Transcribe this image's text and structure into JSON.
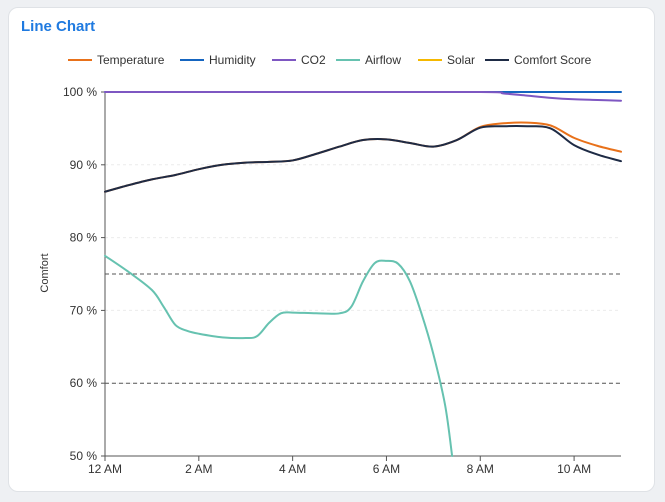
{
  "card": {
    "title": "Line Chart"
  },
  "chart_data": {
    "type": "line",
    "ylabel": "Comfort",
    "ylim": [
      50,
      100
    ],
    "xlim": [
      0,
      11
    ],
    "x_ticks": [
      {
        "x": 0,
        "label": "12 AM"
      },
      {
        "x": 2,
        "label": "2 AM"
      },
      {
        "x": 4,
        "label": "4 AM"
      },
      {
        "x": 6,
        "label": "6 AM"
      },
      {
        "x": 8,
        "label": "8 AM"
      },
      {
        "x": 10,
        "label": "10 AM"
      }
    ],
    "y_ticks": [
      {
        "y": 50,
        "label": "50 %"
      },
      {
        "y": 60,
        "label": "60 %"
      },
      {
        "y": 70,
        "label": "70 %"
      },
      {
        "y": 80,
        "label": "80 %"
      },
      {
        "y": 90,
        "label": "90 %"
      },
      {
        "y": 100,
        "label": "100 %"
      }
    ],
    "reference_lines": [
      75,
      60
    ],
    "legend_position": "top",
    "series": [
      {
        "name": "Temperature",
        "color": "#e8711a",
        "smooth": true,
        "x": [
          0,
          0.5,
          1,
          1.5,
          2,
          2.5,
          3,
          3.5,
          4,
          4.5,
          5,
          5.5,
          6,
          6.5,
          7,
          7.5,
          8,
          8.5,
          9,
          9.5,
          10,
          10.5,
          11
        ],
        "y": [
          86.3,
          87.2,
          88.0,
          88.6,
          89.4,
          90.0,
          90.3,
          90.4,
          90.6,
          91.5,
          92.5,
          93.4,
          93.5,
          93.0,
          92.5,
          93.4,
          95.2,
          95.7,
          95.8,
          95.4,
          93.7,
          92.6,
          91.8
        ]
      },
      {
        "name": "Humidity",
        "color": "#1565c0",
        "smooth": false,
        "x": [
          0,
          11
        ],
        "y": [
          100,
          100
        ]
      },
      {
        "name": "CO2",
        "color": "#7e57c2",
        "smooth": true,
        "x": [
          0,
          4,
          8,
          8.5,
          9,
          9.5,
          10,
          10.5,
          11
        ],
        "y": [
          100,
          100,
          100,
          99.8,
          99.5,
          99.2,
          99.0,
          98.9,
          98.8
        ]
      },
      {
        "name": "Airflow",
        "color": "#66c2b0",
        "smooth": true,
        "x": [
          0,
          0.5,
          1,
          1.25,
          1.5,
          1.75,
          2,
          2.5,
          3,
          3.25,
          3.5,
          3.75,
          4,
          4.5,
          5,
          5.25,
          5.5,
          5.75,
          6,
          6.25,
          6.5,
          6.75,
          7,
          7.25,
          7.4
        ],
        "y": [
          77.5,
          75.3,
          72.8,
          70.5,
          68.0,
          67.2,
          66.8,
          66.3,
          66.2,
          66.5,
          68.3,
          69.6,
          69.7,
          69.6,
          69.6,
          70.5,
          74.0,
          76.5,
          76.8,
          76.4,
          74.0,
          69.5,
          64.0,
          57.0,
          50.0
        ]
      },
      {
        "name": "Solar",
        "color": "#f5b800",
        "smooth": false,
        "x": [],
        "y": []
      },
      {
        "name": "Comfort Score",
        "color": "#1e2b45",
        "smooth": true,
        "x": [
          0,
          0.5,
          1,
          1.5,
          2,
          2.5,
          3,
          3.5,
          4,
          4.5,
          5,
          5.5,
          6,
          6.5,
          7,
          7.5,
          8,
          8.5,
          9,
          9.5,
          10,
          10.5,
          11
        ],
        "y": [
          86.3,
          87.2,
          88.0,
          88.6,
          89.4,
          90.0,
          90.3,
          90.4,
          90.6,
          91.5,
          92.5,
          93.4,
          93.5,
          93.0,
          92.5,
          93.4,
          95.1,
          95.3,
          95.3,
          95.0,
          92.7,
          91.4,
          90.5
        ]
      }
    ]
  }
}
